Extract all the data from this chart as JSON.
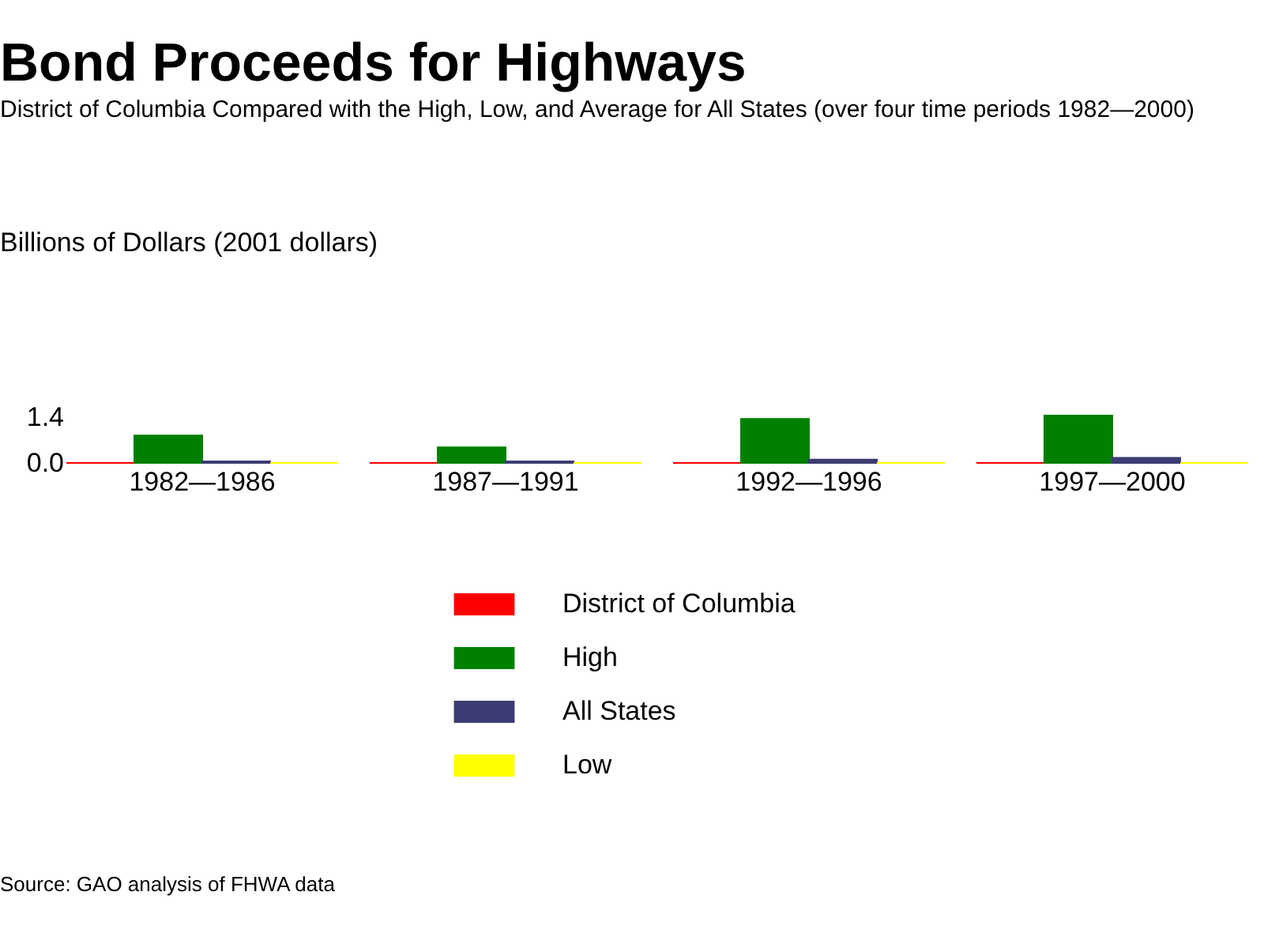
{
  "chart_data": {
    "type": "bar",
    "title": "Bond Proceeds for Highways",
    "subtitle": "District of Columbia Compared with the High, Low, and Average for All States (over four time periods 1982—2000)",
    "categories": [
      "1982—1986",
      "1987—1991",
      "1992—1996",
      "1997—2000"
    ],
    "series": [
      {
        "name": "District of Columbia",
        "color": "#ff0000",
        "values": [
          0,
          0,
          0,
          0
        ]
      },
      {
        "name": "High",
        "color": "#008000",
        "values": [
          0.84,
          0.48,
          1.35,
          1.45
        ]
      },
      {
        "name": "All States",
        "color": "#3c3c73",
        "values": [
          0.05,
          0.05,
          0.1,
          0.16
        ]
      },
      {
        "name": "Low",
        "color": "#ffff00",
        "values": [
          0,
          0,
          0,
          0
        ]
      }
    ],
    "ylim": [
      0,
      1.45
    ],
    "yticks": [
      {
        "value": 0,
        "label": "0.0"
      },
      {
        "value": 1.4,
        "label": "1.4"
      }
    ],
    "grid": false,
    "legend": "bottom",
    "annotations": [
      "Billions of Dollars (2001 dollars)",
      "Source: GAO analysis of FHWA data"
    ]
  }
}
